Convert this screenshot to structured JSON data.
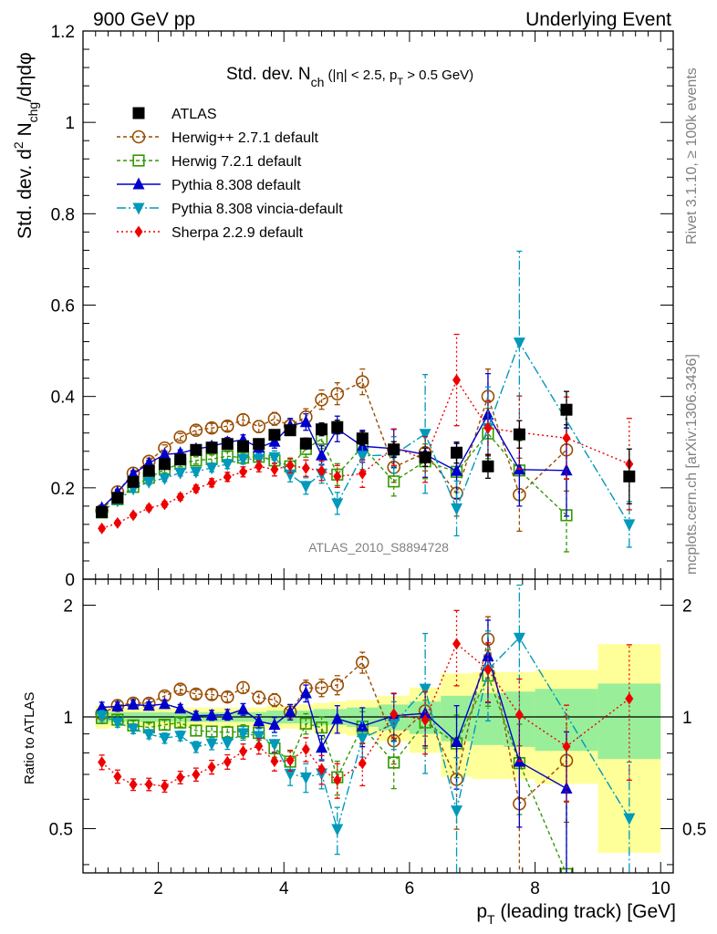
{
  "header": {
    "left": "900 GeV pp",
    "right": "Underlying Event"
  },
  "side_text": {
    "rivet": "Rivet 3.1.10, ≥ 100k events",
    "mcplots": "mcplots.cern.ch [arXiv:1306.3436]"
  },
  "chart_data": {
    "type": "scatter",
    "title": "Std. dev. N_ch (|η| < 2.5, p_T > 0.5 GeV)",
    "title_parts": [
      "Std. dev. N",
      "ch",
      " (|η| < 2.5, p",
      "T",
      " > 0.5 GeV)"
    ],
    "xlabel": "p_T (leading track) [GeV]",
    "xlabel_parts": [
      "p",
      "T",
      " (leading track) [GeV]"
    ],
    "ylabel": "Std. dev. d² N_chg/dηdφ",
    "ylabel_parts": [
      "Std. dev. d",
      "2",
      " N",
      "chg",
      "/dηdφ"
    ],
    "ratio_ylabel": "Ratio to ATLAS",
    "analysis_label": "ATLAS_2010_S8894728",
    "xlim": [
      0.8,
      10.2
    ],
    "ylim": [
      0,
      1.2
    ],
    "ratio_ylim": [
      0.38,
      2.35
    ],
    "x_ticks": [
      "2",
      "4",
      "6",
      "8",
      "10"
    ],
    "y_ticks": [
      "0",
      "0.2",
      "0.4",
      "0.6",
      "0.8",
      "1",
      "1.2"
    ],
    "ratio_ticks": [
      "0.5",
      "1",
      "2"
    ],
    "legend_position": "top-left",
    "x": [
      1.1,
      1.35,
      1.6,
      1.85,
      2.1,
      2.35,
      2.6,
      2.85,
      3.1,
      3.35,
      3.6,
      3.85,
      4.1,
      4.35,
      4.6,
      4.85,
      5.25,
      5.75,
      6.25,
      6.75,
      7.25,
      7.75,
      8.5,
      9.5
    ],
    "band_edges": [
      1.0,
      1.225,
      1.475,
      1.725,
      1.975,
      2.225,
      2.475,
      2.725,
      2.975,
      3.225,
      3.475,
      3.725,
      3.975,
      4.225,
      4.475,
      4.725,
      5.0,
      5.5,
      6.0,
      6.5,
      7.0,
      7.5,
      8.0,
      9.0,
      10.0
    ],
    "band_green": [
      0.03,
      0.03,
      0.03,
      0.03,
      0.03,
      0.03,
      0.03,
      0.03,
      0.03,
      0.03,
      0.03,
      0.04,
      0.04,
      0.04,
      0.05,
      0.05,
      0.06,
      0.08,
      0.1,
      0.14,
      0.16,
      0.17,
      0.19,
      0.23
    ],
    "band_yellow": [
      0.07,
      0.06,
      0.06,
      0.06,
      0.06,
      0.06,
      0.06,
      0.06,
      0.06,
      0.06,
      0.06,
      0.07,
      0.07,
      0.08,
      0.09,
      0.1,
      0.11,
      0.14,
      0.2,
      0.31,
      0.32,
      0.32,
      0.34,
      0.57
    ],
    "series": [
      {
        "name": "ATLAS",
        "color": "#000000",
        "marker": "square-filled",
        "dash": "none",
        "values": [
          0.147,
          0.178,
          0.213,
          0.237,
          0.252,
          0.262,
          0.283,
          0.288,
          0.296,
          0.291,
          0.296,
          0.316,
          0.326,
          0.297,
          0.328,
          0.333,
          0.308,
          0.284,
          0.267,
          0.277,
          0.247,
          0.317,
          0.371,
          0.225
        ],
        "err": [
          0.005,
          0.005,
          0.005,
          0.005,
          0.005,
          0.005,
          0.006,
          0.006,
          0.006,
          0.007,
          0.007,
          0.008,
          0.01,
          0.012,
          0.014,
          0.015,
          0.015,
          0.017,
          0.02,
          0.023,
          0.026,
          0.03,
          0.04,
          0.06
        ]
      },
      {
        "name": "Herwig++ 2.7.1 default",
        "color": "#994c00",
        "marker": "circle-open",
        "dash": "4,3",
        "values": [
          0.15,
          0.191,
          0.232,
          0.258,
          0.287,
          0.311,
          0.326,
          0.331,
          0.335,
          0.349,
          0.334,
          0.351,
          0.336,
          0.355,
          0.393,
          0.406,
          0.432,
          0.245,
          0.277,
          0.188,
          0.4,
          0.185,
          0.283,
          null
        ],
        "err": [
          0.005,
          0.006,
          0.006,
          0.007,
          0.007,
          0.008,
          0.009,
          0.01,
          0.01,
          0.012,
          0.013,
          0.014,
          0.016,
          0.018,
          0.021,
          0.024,
          0.028,
          0.033,
          0.04,
          0.05,
          0.06,
          0.08,
          0.09,
          0
        ]
      },
      {
        "name": "Herwig 7.2.1 default",
        "color": "#339900",
        "marker": "square-open",
        "dash": "4,3",
        "values": [
          0.146,
          0.175,
          0.202,
          0.222,
          0.24,
          0.253,
          0.26,
          0.263,
          0.269,
          0.266,
          0.268,
          0.26,
          0.247,
          0.285,
          0.307,
          0.229,
          0.29,
          0.214,
          0.258,
          0.235,
          0.319,
          0.238,
          0.14,
          null
        ],
        "err": [
          0.005,
          0.005,
          0.006,
          0.006,
          0.007,
          0.007,
          0.008,
          0.009,
          0.01,
          0.011,
          0.012,
          0.014,
          0.016,
          0.018,
          0.021,
          0.024,
          0.028,
          0.032,
          0.038,
          0.045,
          0.055,
          0.065,
          0.08,
          0
        ]
      },
      {
        "name": "Pythia 8.308 default",
        "color": "#0000cc",
        "marker": "triangle-up",
        "dash": "none",
        "values": [
          0.156,
          0.19,
          0.23,
          0.254,
          0.273,
          0.276,
          0.285,
          0.291,
          0.3,
          0.305,
          0.288,
          0.301,
          0.336,
          0.344,
          0.271,
          0.329,
          0.291,
          0.286,
          0.273,
          0.237,
          0.36,
          0.24,
          0.238,
          null
        ],
        "err": [
          0.005,
          0.005,
          0.006,
          0.006,
          0.007,
          0.007,
          0.008,
          0.009,
          0.01,
          0.011,
          0.012,
          0.014,
          0.016,
          0.018,
          0.021,
          0.028,
          0.035,
          0.042,
          0.05,
          0.06,
          0.09,
          0.08,
          0.1,
          0
        ]
      },
      {
        "name": "Pythia 8.308 vincia-default",
        "color": "#0099bb",
        "marker": "triangle-down",
        "dash": "10,3,2,3",
        "values": [
          0.148,
          0.172,
          0.198,
          0.213,
          0.221,
          0.233,
          0.235,
          0.244,
          0.252,
          0.263,
          0.263,
          0.267,
          0.229,
          0.204,
          0.231,
          0.166,
          0.27,
          0.272,
          0.318,
          0.155,
          0.331,
          0.518,
          null,
          0.12
        ],
        "err": [
          0.005,
          0.005,
          0.006,
          0.006,
          0.007,
          0.007,
          0.008,
          0.009,
          0.01,
          0.011,
          0.012,
          0.014,
          0.016,
          0.018,
          0.021,
          0.024,
          0.03,
          0.04,
          0.13,
          0.06,
          0.09,
          0.2,
          0,
          0.05
        ]
      },
      {
        "name": "Sherpa 2.2.9 default",
        "color": "#ee0000",
        "marker": "diamond",
        "dash": "2,3",
        "values": [
          0.111,
          0.123,
          0.14,
          0.156,
          0.164,
          0.18,
          0.198,
          0.211,
          0.224,
          0.235,
          0.247,
          0.24,
          0.249,
          0.243,
          0.237,
          0.225,
          0.231,
          0.289,
          0.262,
          0.436,
          0.331,
          0.321,
          0.309,
          0.252
        ],
        "err": [
          0.005,
          0.005,
          0.005,
          0.006,
          0.006,
          0.007,
          0.008,
          0.009,
          0.01,
          0.011,
          0.012,
          0.014,
          0.016,
          0.018,
          0.021,
          0.024,
          0.03,
          0.04,
          0.05,
          0.1,
          0.06,
          0.08,
          0.09,
          0.1
        ]
      }
    ]
  }
}
